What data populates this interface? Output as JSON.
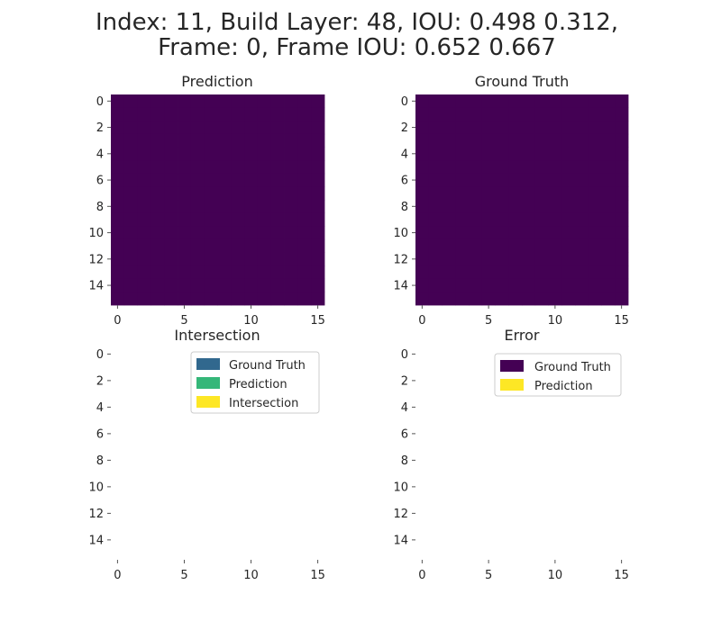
{
  "figure": {
    "title_line1": "Index: 11, Build Layer: 48, IOU: 0.498 0.312,",
    "title_line2": "Frame: 0, Frame IOU: 0.652 0.667"
  },
  "colors": {
    "prediction_bg": "#440154",
    "prediction_fg": "#21918c",
    "gt_bg": "#440154",
    "gt_fg": "#31688e",
    "ground_truth": "#31688e",
    "prediction": "#35b779",
    "intersection": "#fde725",
    "error_gt": "#440154",
    "error_pred": "#fde725"
  },
  "chart_data": [
    {
      "type": "heatmap",
      "title": "Prediction",
      "xlim": [
        -0.5,
        15.5
      ],
      "ylim": [
        15.5,
        -0.5
      ],
      "xticks": [
        0,
        5,
        10,
        15
      ],
      "yticks": [
        0,
        2,
        4,
        6,
        8,
        10,
        12,
        14
      ],
      "grid": [
        "0000000000000000",
        "0000000000000000",
        "0000000000000000",
        "0000000000000000",
        "0000000000000000",
        "0000000000000000",
        "0000000000000000",
        "0000000000000000",
        "0000000000000000",
        "0000000000000000",
        "0000000000000000",
        "0000000000000000",
        "0000000000000000",
        "0000000000000000",
        "0000000000000000",
        "0000000000000000"
      ]
    },
    {
      "type": "heatmap",
      "title": "Ground Truth",
      "xlim": [
        -0.5,
        15.5
      ],
      "ylim": [
        15.5,
        -0.5
      ],
      "xticks": [
        0,
        5,
        10,
        15
      ],
      "yticks": [
        0,
        2,
        4,
        6,
        8,
        10,
        12,
        14
      ],
      "grid": [
        "0000000000000000",
        "0000000000000000",
        "0000000000000000",
        "0000000000000000",
        "0000000000000000",
        "0000000000000000",
        "0000000000000000",
        "0000000000000000",
        "0000000000000000",
        "0000000000000000",
        "0000000000000000",
        "0000000000000000",
        "0000000000000000",
        "0000000000000000",
        "0000000000000000",
        "0000000000000000"
      ]
    },
    {
      "type": "heatmap",
      "title": "Intersection",
      "xlim": [
        -0.5,
        15.5
      ],
      "ylim": [
        15.5,
        -0.5
      ],
      "xticks": [
        0,
        5,
        10,
        15
      ],
      "yticks": [
        0,
        2,
        4,
        6,
        8,
        10,
        12,
        14
      ],
      "legend": {
        "placement": "upper-right",
        "entries": [
          "Ground Truth",
          "Prediction",
          "Intersection"
        ]
      },
      "grid": [
        "0000000000000000",
        "0000000000000000",
        "0000000000000000",
        "0000000000000000",
        "0000000000000000",
        "0000000000000000",
        "0000000000000000",
        "0000000000000000",
        "0000000000000000",
        "0000000000000000",
        "0000000000000000",
        "0000000000000000",
        "0000000000000000",
        "0000000000000000",
        "0000000000000000",
        "0000000000000000"
      ]
    },
    {
      "type": "heatmap",
      "title": "Error",
      "xlim": [
        -0.5,
        15.5
      ],
      "ylim": [
        15.5,
        -0.5
      ],
      "xticks": [
        0,
        5,
        10,
        15
      ],
      "yticks": [
        0,
        2,
        4,
        6,
        8,
        10,
        12,
        14
      ],
      "legend": {
        "placement": "upper-right",
        "entries": [
          "Ground Truth",
          "Prediction"
        ]
      },
      "grid": [
        "0000000000000000",
        "0000000000000000",
        "0000000000000000",
        "0000000000000000",
        "0000000000000000",
        "0000000000000000",
        "0000000000000000",
        "0000000000000000",
        "0000000000000000",
        "0000000000000000",
        "0000000000000000",
        "0000000000000000",
        "0000000000000000",
        "0000000000000000",
        "0000000000000000",
        "0000000000000000"
      ]
    }
  ]
}
